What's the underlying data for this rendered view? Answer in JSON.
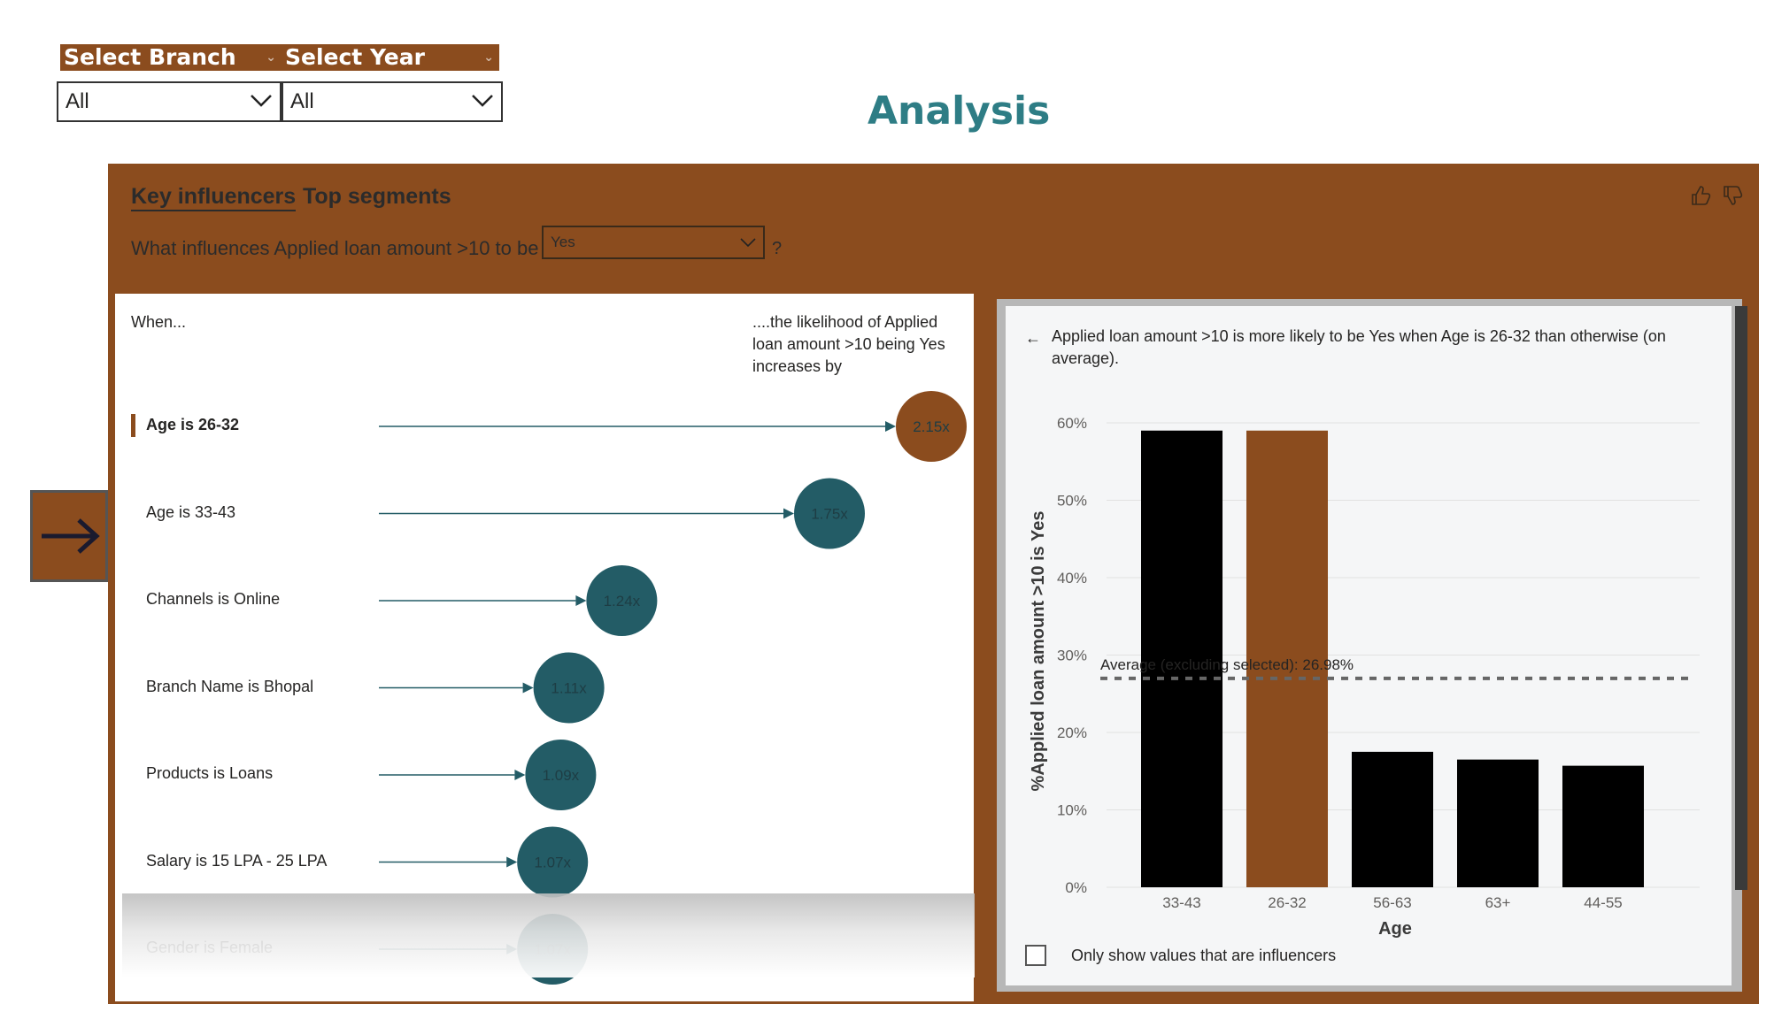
{
  "slicers": [
    {
      "header": "Select Branch",
      "value": "All"
    },
    {
      "header": "Select Year",
      "value": "All"
    }
  ],
  "page_title": "Analysis",
  "visual": {
    "tabs": [
      "Key influencers",
      "Top segments"
    ],
    "question_prefix": "What influences Applied loan amount >10 to be",
    "question_value": "Yes",
    "question_suffix": "?",
    "left": {
      "when_label": "When...",
      "likelihood_label": [
        "....the likelihood of Applied",
        "loan amount >10 being Yes",
        "increases by"
      ],
      "influencers": [
        {
          "label": "Age is 26-32",
          "value": "2.15x",
          "selected": true
        },
        {
          "label": "Age is 33-43",
          "value": "1.75x",
          "selected": false
        },
        {
          "label": "Channels is Online",
          "value": "1.24x",
          "selected": false
        },
        {
          "label": "Branch Name is Bhopal",
          "value": "1.11x",
          "selected": false
        },
        {
          "label": "Products is Loans",
          "value": "1.09x",
          "selected": false
        },
        {
          "label": "Salary is 15 LPA - 25 LPA",
          "value": "1.07x",
          "selected": false
        },
        {
          "label": "Gender is Female",
          "value": "1.07x",
          "selected": false
        }
      ]
    },
    "right": {
      "description": "Applied loan amount >10 is more likely to be Yes when Age is 26-32 than otherwise (on average).",
      "checkbox_label": "Only show values that are influencers"
    }
  },
  "colors": {
    "accent": "#8B4C1E",
    "teal": "#235C66",
    "title": "#2E7D85"
  },
  "chart_data": {
    "type": "bar",
    "categories": [
      "33-43",
      "26-32",
      "56-63",
      "63+",
      "44-55"
    ],
    "values": [
      59,
      59,
      17.5,
      16.5,
      15.7
    ],
    "highlight": "26-32",
    "xlabel": "Age",
    "ylabel": "%Applied loan amount >10 is Yes",
    "yticks": [
      "0%",
      "10%",
      "20%",
      "30%",
      "40%",
      "50%",
      "60%"
    ],
    "ylim": [
      0,
      60
    ],
    "average_line": {
      "value": 26.98,
      "label": "Average (excluding selected): 26.98%"
    },
    "grid": true
  }
}
